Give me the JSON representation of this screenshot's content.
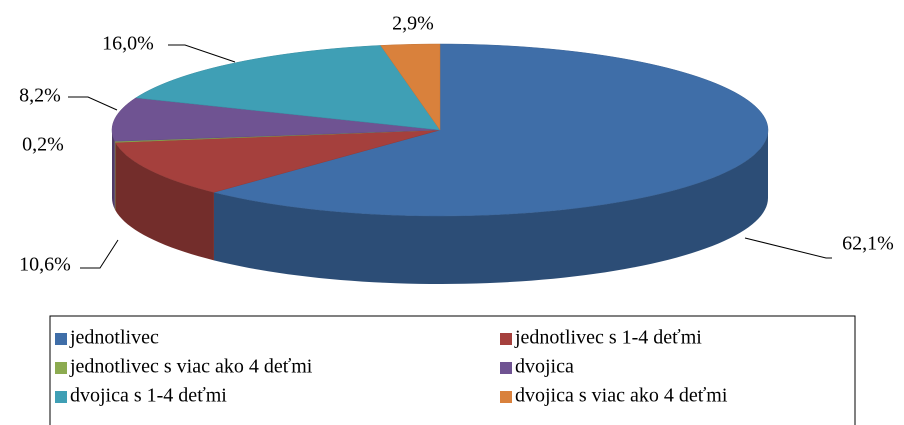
{
  "chart_data": {
    "type": "pie3d",
    "categories": [
      "jednotlivec",
      "jednotlivec s 1-4 deťmi",
      "jednotlivec s viac ako 4 deťmi",
      "dvojica",
      "dvojica s 1-4 deťmi",
      "dvojica s viac ako 4 deťmi"
    ],
    "values": [
      62.1,
      10.6,
      0.2,
      8.2,
      16.0,
      2.9
    ],
    "value_labels": [
      "62,1%",
      "10,6%",
      "0,2%",
      "8,2%",
      "16,0%",
      "2,9%"
    ],
    "colors": [
      "#3f6ea8",
      "#a5403d",
      "#8cab50",
      "#6f5392",
      "#3f9fb5",
      "#d9813c"
    ],
    "legend": "bottom"
  }
}
